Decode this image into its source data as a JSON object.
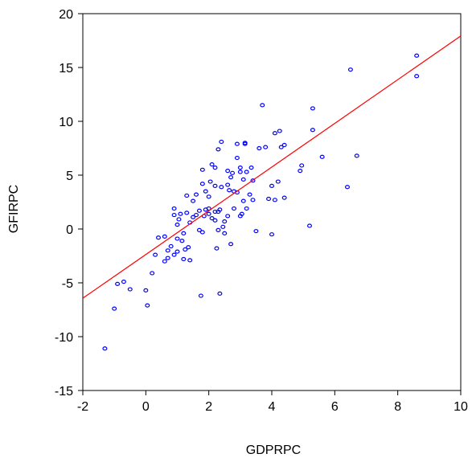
{
  "chart_data": {
    "type": "scatter",
    "title": "",
    "xlabel": "GDPRPC",
    "ylabel": "GFIRPC",
    "xlim": [
      -2,
      10
    ],
    "ylim": [
      -15,
      20
    ],
    "xticks": [
      "-2",
      "0",
      "2",
      "4",
      "6",
      "8",
      "10"
    ],
    "yticks": [
      "-15",
      "-10",
      "-5",
      "0",
      "5",
      "10",
      "15",
      "20"
    ],
    "grid": false,
    "legend": "none",
    "point_color": "#0000ff",
    "fit_color": "#ff0000",
    "fit_line": {
      "intercept": -2.37,
      "slope": 2.03
    },
    "points": [
      [
        -1.3,
        -11.1
      ],
      [
        -1.0,
        -7.4
      ],
      [
        -0.9,
        -5.1
      ],
      [
        -0.7,
        -4.9
      ],
      [
        -0.5,
        -5.6
      ],
      [
        0.0,
        -5.7
      ],
      [
        0.05,
        -7.1
      ],
      [
        0.2,
        -4.1
      ],
      [
        0.3,
        -2.4
      ],
      [
        0.4,
        -0.8
      ],
      [
        0.6,
        -3.0
      ],
      [
        0.6,
        -0.7
      ],
      [
        0.7,
        -2.0
      ],
      [
        0.7,
        -2.7
      ],
      [
        0.8,
        -1.6
      ],
      [
        0.9,
        -2.4
      ],
      [
        0.9,
        1.3
      ],
      [
        0.9,
        1.9
      ],
      [
        1.0,
        -2.1
      ],
      [
        1.0,
        -0.9
      ],
      [
        1.0,
        0.4
      ],
      [
        1.05,
        0.9
      ],
      [
        1.1,
        1.4
      ],
      [
        1.15,
        -1.1
      ],
      [
        1.2,
        -0.4
      ],
      [
        1.2,
        -2.8
      ],
      [
        1.25,
        -1.9
      ],
      [
        1.3,
        1.5
      ],
      [
        1.3,
        3.1
      ],
      [
        1.35,
        -1.7
      ],
      [
        1.4,
        -2.9
      ],
      [
        1.4,
        0.6
      ],
      [
        1.5,
        2.6
      ],
      [
        1.5,
        1.1
      ],
      [
        1.6,
        3.2
      ],
      [
        1.6,
        1.3
      ],
      [
        1.7,
        -0.1
      ],
      [
        1.7,
        1.7
      ],
      [
        1.75,
        -6.2
      ],
      [
        1.8,
        -0.3
      ],
      [
        1.8,
        4.2
      ],
      [
        1.8,
        5.5
      ],
      [
        1.85,
        1.2
      ],
      [
        1.9,
        1.8
      ],
      [
        1.9,
        3.5
      ],
      [
        2.0,
        1.4
      ],
      [
        2.0,
        3.0
      ],
      [
        2.0,
        1.9
      ],
      [
        2.05,
        4.4
      ],
      [
        2.1,
        1.0
      ],
      [
        2.1,
        6.0
      ],
      [
        2.2,
        1.6
      ],
      [
        2.2,
        0.8
      ],
      [
        2.2,
        4.0
      ],
      [
        2.2,
        5.7
      ],
      [
        2.25,
        -1.8
      ],
      [
        2.3,
        7.4
      ],
      [
        2.3,
        1.6
      ],
      [
        2.3,
        -0.1
      ],
      [
        2.35,
        1.8
      ],
      [
        2.35,
        -6.0
      ],
      [
        2.4,
        8.1
      ],
      [
        2.4,
        3.9
      ],
      [
        2.45,
        0.2
      ],
      [
        2.5,
        -0.4
      ],
      [
        2.5,
        0.7
      ],
      [
        2.6,
        4.1
      ],
      [
        2.6,
        1.2
      ],
      [
        2.6,
        5.4
      ],
      [
        2.65,
        3.6
      ],
      [
        2.7,
        -1.4
      ],
      [
        2.7,
        4.8
      ],
      [
        2.75,
        5.2
      ],
      [
        2.8,
        3.5
      ],
      [
        2.8,
        1.9
      ],
      [
        2.9,
        7.9
      ],
      [
        2.9,
        6.6
      ],
      [
        2.9,
        3.4
      ],
      [
        3.0,
        5.3
      ],
      [
        3.0,
        5.7
      ],
      [
        3.0,
        1.2
      ],
      [
        3.05,
        1.4
      ],
      [
        3.1,
        4.6
      ],
      [
        3.1,
        2.6
      ],
      [
        3.15,
        8.0
      ],
      [
        3.15,
        7.9
      ],
      [
        3.2,
        5.3
      ],
      [
        3.2,
        1.9
      ],
      [
        3.3,
        3.2
      ],
      [
        3.35,
        5.7
      ],
      [
        3.4,
        2.7
      ],
      [
        3.4,
        4.5
      ],
      [
        3.5,
        -0.2
      ],
      [
        3.6,
        7.5
      ],
      [
        3.7,
        11.5
      ],
      [
        3.8,
        7.6
      ],
      [
        3.9,
        2.8
      ],
      [
        4.0,
        4.0
      ],
      [
        4.0,
        -0.5
      ],
      [
        4.1,
        2.7
      ],
      [
        4.1,
        8.9
      ],
      [
        4.2,
        4.4
      ],
      [
        4.25,
        9.1
      ],
      [
        4.3,
        7.6
      ],
      [
        4.4,
        2.9
      ],
      [
        4.4,
        7.8
      ],
      [
        4.9,
        5.4
      ],
      [
        4.95,
        5.9
      ],
      [
        5.2,
        0.3
      ],
      [
        5.3,
        9.2
      ],
      [
        5.3,
        11.2
      ],
      [
        5.6,
        6.7
      ],
      [
        6.4,
        3.9
      ],
      [
        6.5,
        14.8
      ],
      [
        6.7,
        6.8
      ],
      [
        8.6,
        14.2
      ],
      [
        8.6,
        16.1
      ]
    ]
  }
}
